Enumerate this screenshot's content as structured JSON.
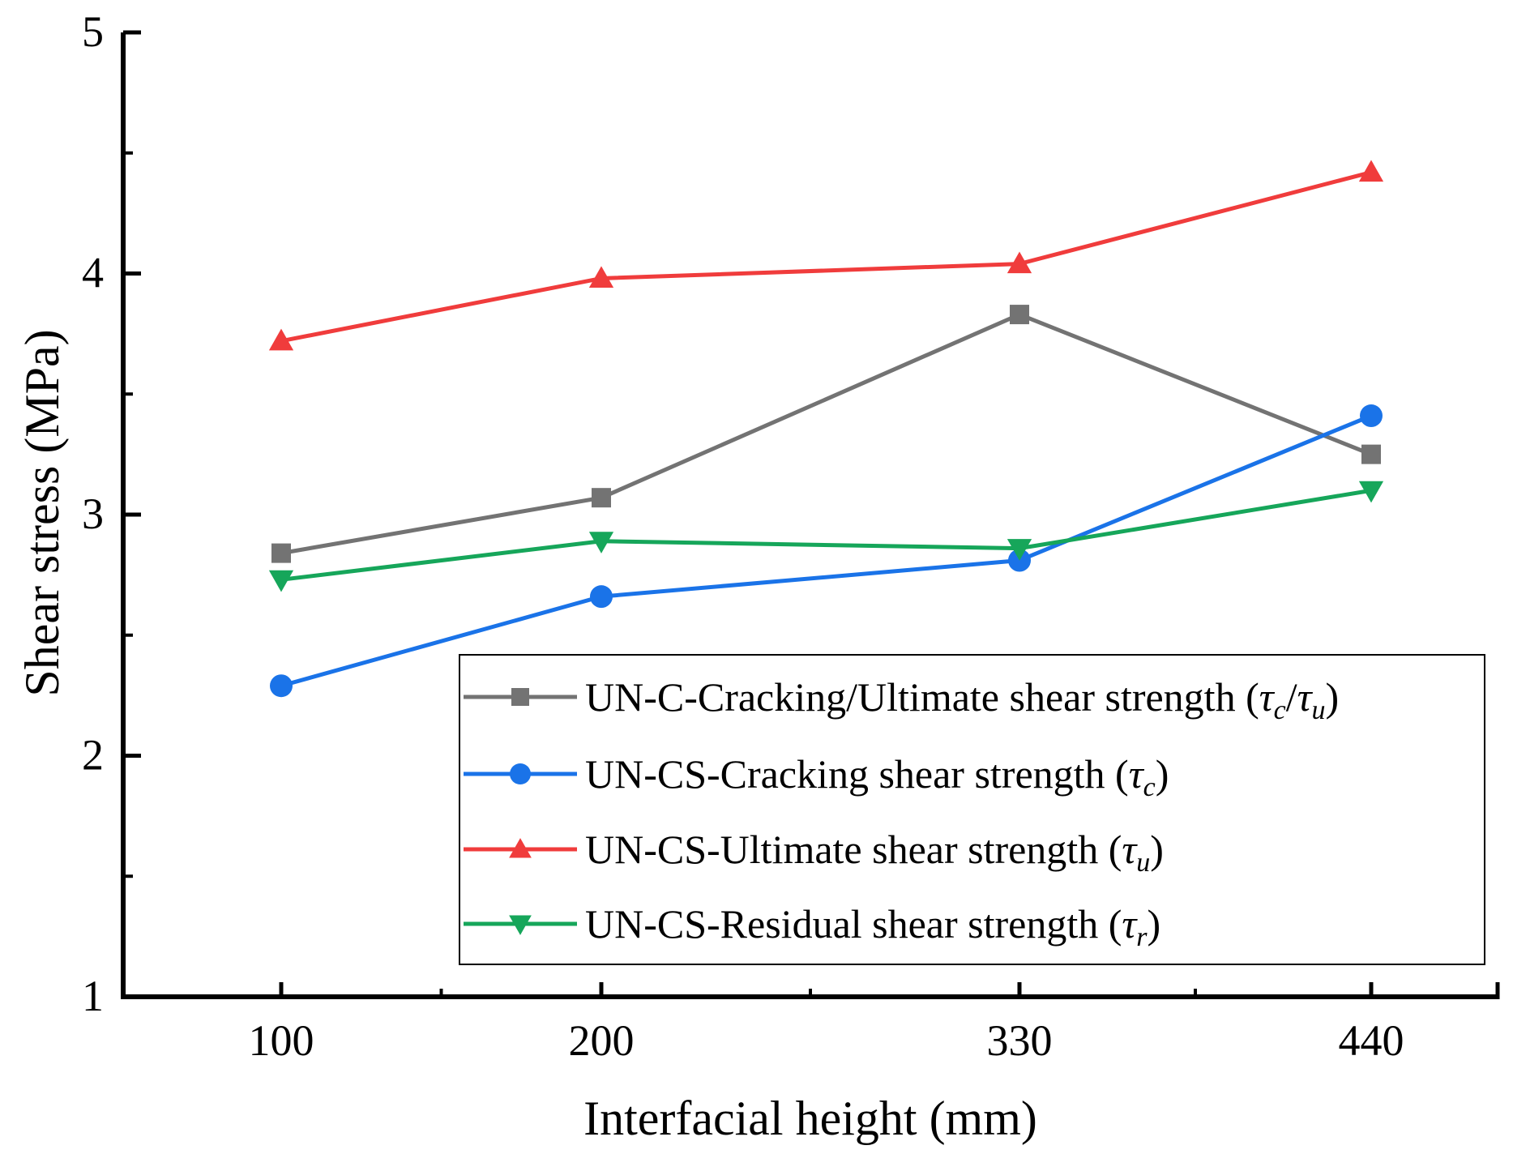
{
  "chart_data": {
    "type": "line",
    "title": "",
    "xlabel": "Interfacial height (mm)",
    "ylabel": "Shear stress (MPa)",
    "categories": [
      "100",
      "200",
      "330",
      "440"
    ],
    "x_scale": "categorical",
    "ylim": [
      1,
      5
    ],
    "yticks": [
      "1",
      "2",
      "3",
      "4",
      "5"
    ],
    "grid": false,
    "legend_position": "bottom-right",
    "series": [
      {
        "name": "UN-C-Cracking/Ultimate shear strength (τc/τu)",
        "label_main": "UN-C-Cracking/Ultimate shear strength (",
        "label_sym1": "τ",
        "label_sub1": "c",
        "label_mid": "/",
        "label_sym2": "τ",
        "label_sub2": "u",
        "label_end": ")",
        "marker": "square",
        "color": "#737373",
        "values": [
          2.84,
          3.07,
          3.83,
          3.25
        ]
      },
      {
        "name": "UN-CS-Cracking shear strength (τc)",
        "label_main": "UN-CS-Cracking shear strength (",
        "label_sym1": "τ",
        "label_sub1": "c",
        "label_end": ")",
        "marker": "circle",
        "color": "#1a73e8",
        "values": [
          2.29,
          2.66,
          2.81,
          3.41
        ]
      },
      {
        "name": "UN-CS-Ultimate shear strength (τu)",
        "label_main": "UN-CS-Ultimate shear strength (",
        "label_sym1": "τ",
        "label_sub1": "u",
        "label_end": ")",
        "marker": "triangle-up",
        "color": "#f03c3c",
        "values": [
          3.72,
          3.98,
          4.04,
          4.42
        ]
      },
      {
        "name": "UN-CS-Residual  shear strength (τr)",
        "label_main": "UN-CS-Residual  shear strength (",
        "label_sym1": "τ",
        "label_sub1": "r",
        "label_end": ")",
        "marker": "triangle-down",
        "color": "#16a65a",
        "values": [
          2.73,
          2.89,
          2.86,
          3.1
        ]
      }
    ]
  }
}
